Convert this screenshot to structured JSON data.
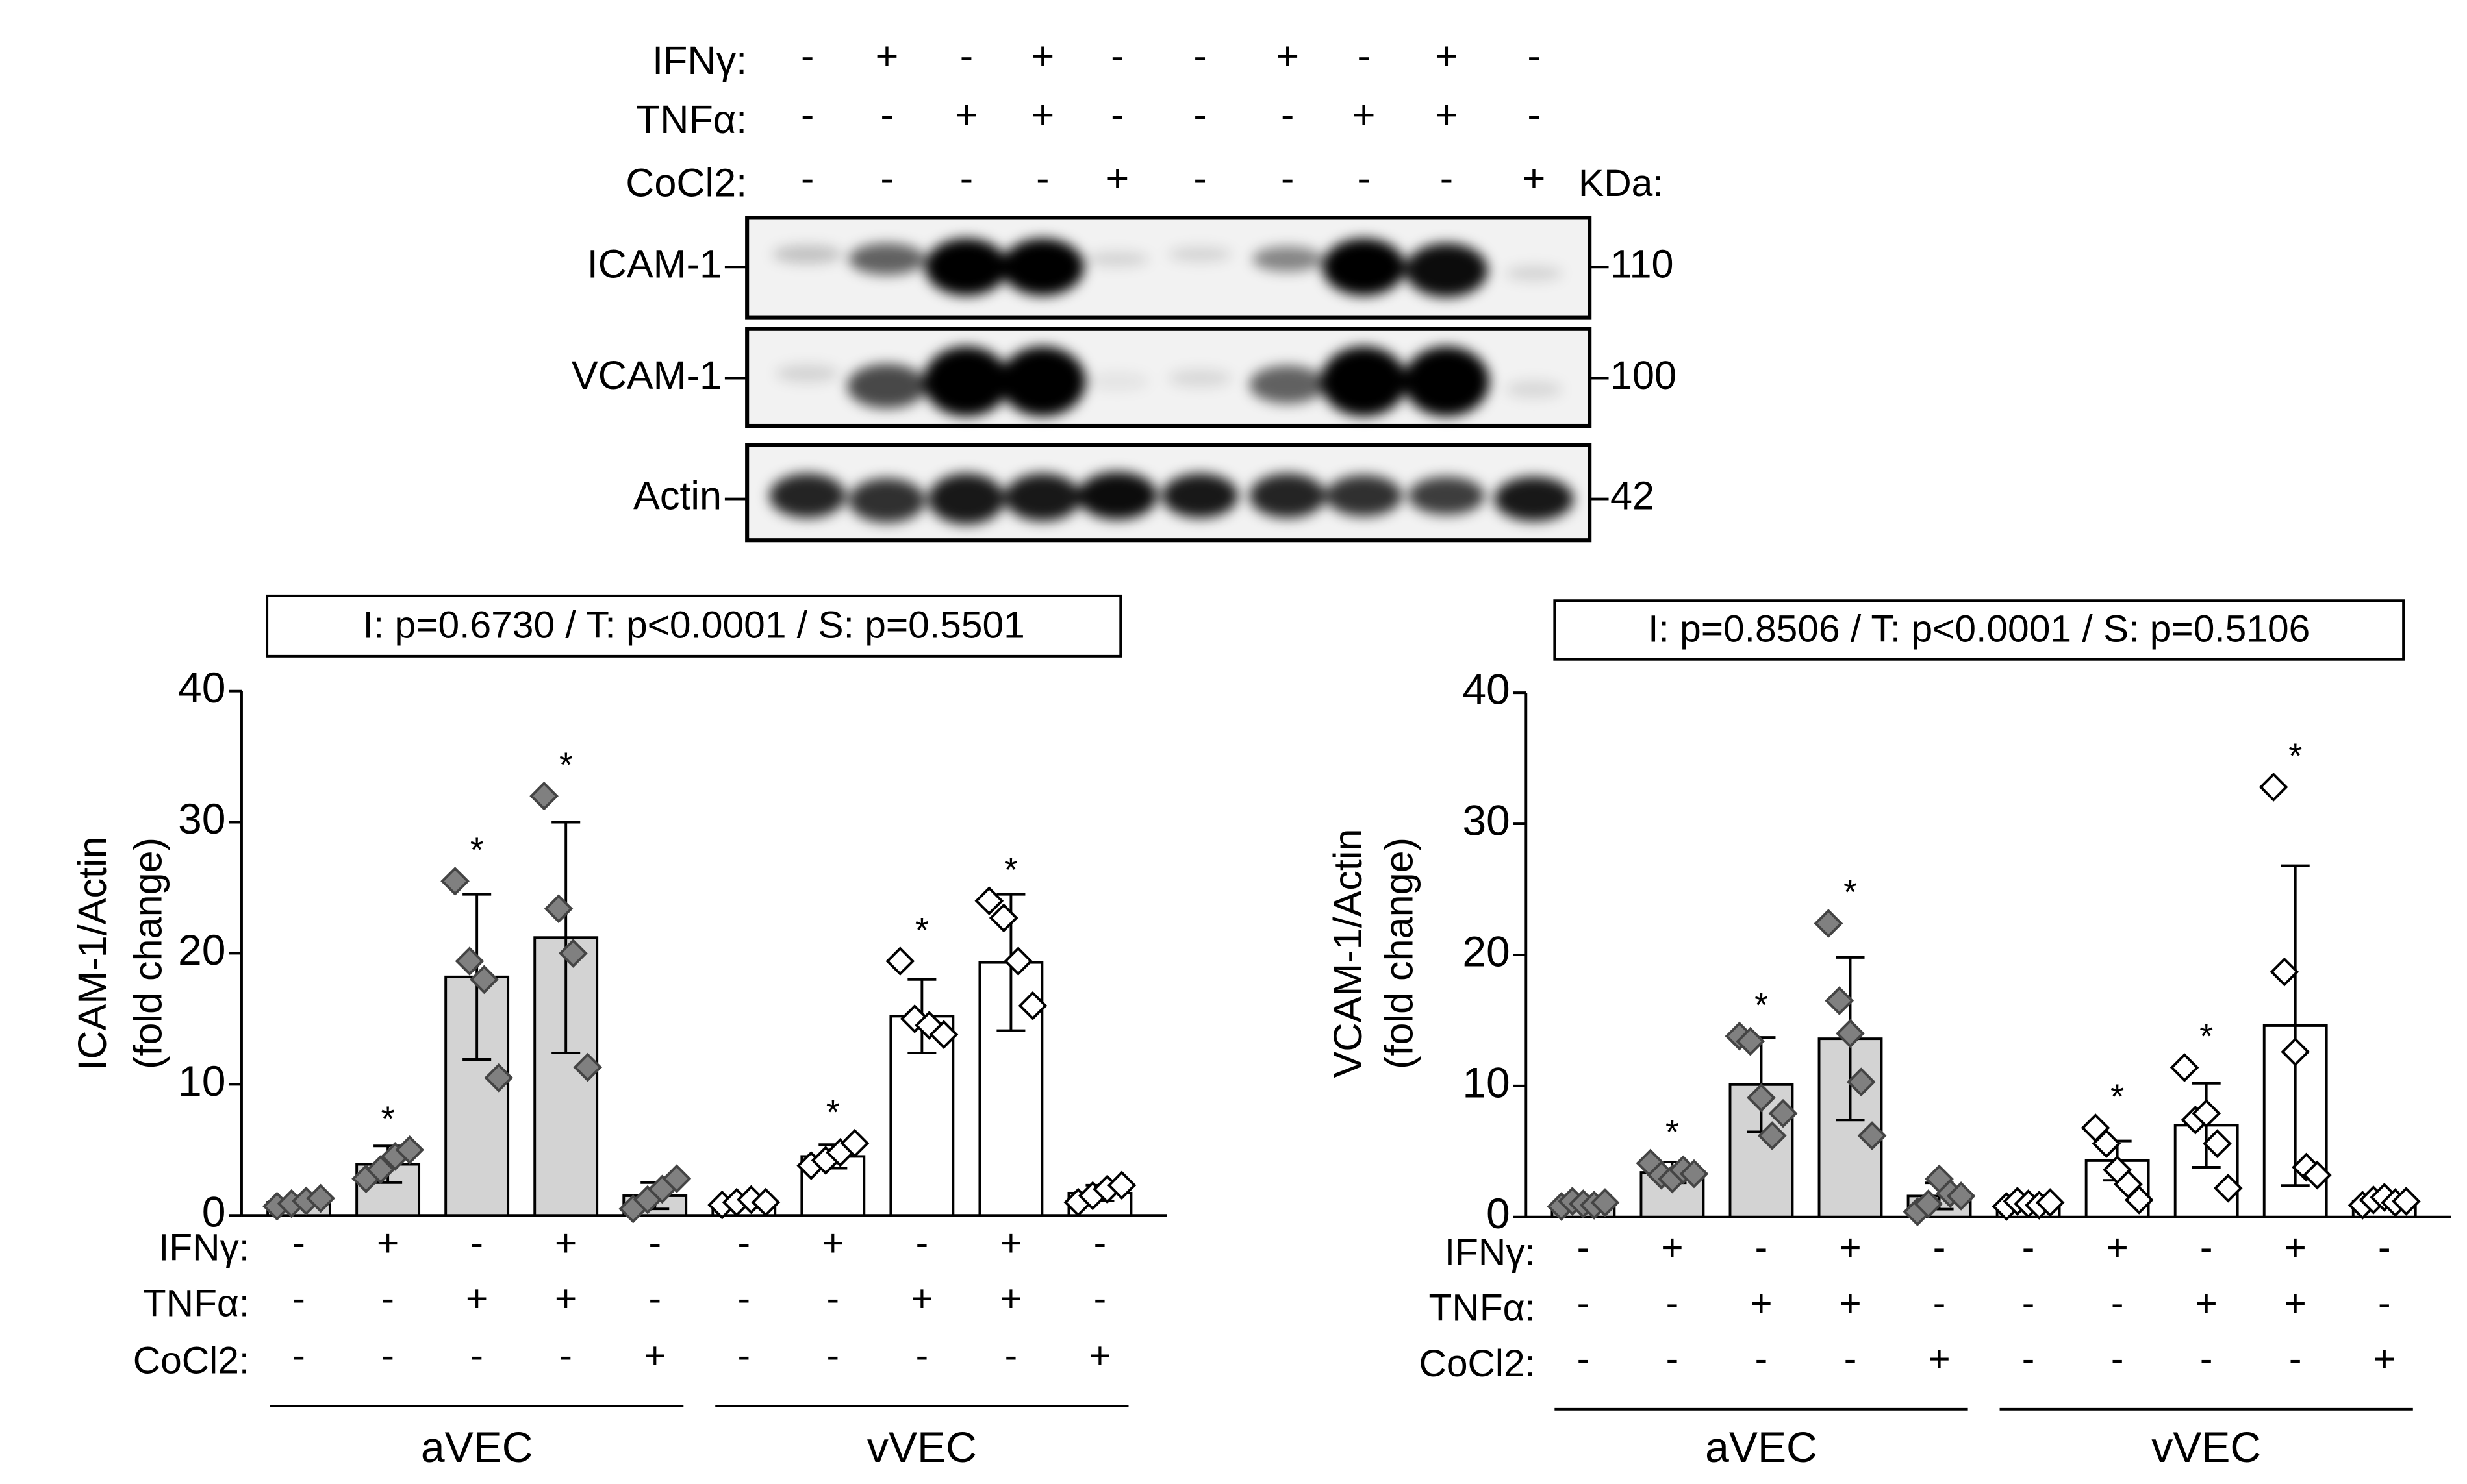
{
  "blot": {
    "conditions": [
      {
        "name": "IFNγ:",
        "values": [
          "-",
          "+",
          "-",
          "+",
          "-",
          "-",
          "+",
          "-",
          "+",
          "-"
        ]
      },
      {
        "name": "TNFα:",
        "values": [
          "-",
          "-",
          "+",
          "+",
          "-",
          "-",
          "-",
          "+",
          "+",
          "-"
        ]
      },
      {
        "name": "CoCl2:",
        "values": [
          "-",
          "-",
          "-",
          "-",
          "+",
          "-",
          "-",
          "-",
          "-",
          "+"
        ]
      }
    ],
    "kda_label": "KDa:",
    "bands": [
      {
        "name": "ICAM-1",
        "kda": 110
      },
      {
        "name": "VCAM-1",
        "kda": 100
      },
      {
        "name": "Actin",
        "kda": 42
      }
    ]
  },
  "chart_data": [
    {
      "type": "bar",
      "annotation": "I: p=0.6730 / T: p<0.0001 / S: p=0.5501",
      "ylabel": [
        "ICAM-1/Actin",
        "(fold change)"
      ],
      "conditions": [
        {
          "name": "IFNγ:",
          "values": [
            "-",
            "+",
            "-",
            "+",
            "-",
            "-",
            "+",
            "-",
            "+",
            "-"
          ]
        },
        {
          "name": "TNFα:",
          "values": [
            "-",
            "-",
            "+",
            "+",
            "-",
            "-",
            "-",
            "+",
            "+",
            "-"
          ]
        },
        {
          "name": "CoCl2:",
          "values": [
            "-",
            "-",
            "-",
            "-",
            "+",
            "-",
            "-",
            "-",
            "-",
            "+"
          ]
        }
      ],
      "groups": [
        "aVEC",
        "vVEC"
      ],
      "values": [
        1.0,
        3.9,
        18.2,
        21.2,
        1.5,
        1.0,
        4.5,
        15.2,
        19.3,
        1.7
      ],
      "errors": [
        0.3,
        1.4,
        6.3,
        8.8,
        1.0,
        0.3,
        0.9,
        2.8,
        5.2,
        0.6
      ],
      "points": [
        [
          0.7,
          0.9,
          1.1,
          1.3
        ],
        [
          2.8,
          3.5,
          4.5,
          5.0
        ],
        [
          25.5,
          19.4,
          18.0,
          10.5
        ],
        [
          32.0,
          23.4,
          20.0,
          11.3
        ],
        [
          0.5,
          1.2,
          2.0,
          2.8
        ],
        [
          0.8,
          1.0,
          1.2,
          1.0
        ],
        [
          3.8,
          4.2,
          4.8,
          5.5
        ],
        [
          19.4,
          15.0,
          14.5,
          13.8
        ],
        [
          24.0,
          22.7,
          19.4,
          16.0
        ],
        [
          1.0,
          1.5,
          2.0,
          2.3
        ]
      ],
      "significance": [
        null,
        "*",
        "*",
        "*",
        null,
        null,
        "*",
        "*",
        "*",
        null
      ],
      "colors": [
        "#d3d3d3",
        "#d3d3d3",
        "#d3d3d3",
        "#d3d3d3",
        "#d3d3d3",
        "#ffffff",
        "#ffffff",
        "#ffffff",
        "#ffffff",
        "#ffffff"
      ],
      "point_colors": [
        "#808080",
        "#808080",
        "#808080",
        "#808080",
        "#808080",
        "#ffffff",
        "#ffffff",
        "#ffffff",
        "#ffffff",
        "#ffffff"
      ],
      "ylim": [
        0,
        40
      ],
      "yticks": [
        0,
        10,
        20,
        30,
        40
      ]
    },
    {
      "type": "bar",
      "annotation": "I: p=0.8506 / T: p<0.0001 / S: p=0.5106",
      "ylabel": [
        "VCAM-1/Actin",
        "(fold change)"
      ],
      "conditions": [
        {
          "name": "IFNγ:",
          "values": [
            "-",
            "+",
            "-",
            "+",
            "-",
            "-",
            "+",
            "-",
            "+",
            "-"
          ]
        },
        {
          "name": "TNFα:",
          "values": [
            "-",
            "-",
            "+",
            "+",
            "-",
            "-",
            "-",
            "+",
            "+",
            "-"
          ]
        },
        {
          "name": "CoCl2:",
          "values": [
            "-",
            "-",
            "-",
            "-",
            "+",
            "-",
            "-",
            "-",
            "-",
            "+"
          ]
        }
      ],
      "groups": [
        "aVEC",
        "vVEC"
      ],
      "values": [
        1.0,
        3.4,
        10.1,
        13.6,
        1.6,
        1.0,
        4.3,
        7.0,
        14.6,
        1.2
      ],
      "errors": [
        0.3,
        0.8,
        3.6,
        6.2,
        1.0,
        0.3,
        1.5,
        3.2,
        12.2,
        0.4
      ],
      "points": [
        [
          0.8,
          1.2,
          1.0,
          0.9,
          1.1
        ],
        [
          4.1,
          3.2,
          2.9,
          3.6,
          3.3
        ],
        [
          13.8,
          13.4,
          9.1,
          6.2,
          7.9
        ],
        [
          22.4,
          16.5,
          14.0,
          10.3,
          6.2
        ],
        [
          0.4,
          1.0,
          2.9,
          1.8,
          1.6
        ],
        [
          0.8,
          1.2,
          1.0,
          0.9,
          1.1
        ],
        [
          6.8,
          5.6,
          3.6,
          2.5,
          1.3
        ],
        [
          11.4,
          7.4,
          7.9,
          5.6,
          2.2
        ],
        [
          32.8,
          18.7,
          12.6,
          3.8,
          3.2
        ],
        [
          0.9,
          1.3,
          1.5,
          1.1,
          1.2
        ]
      ],
      "significance": [
        null,
        "*",
        "*",
        "*",
        null,
        null,
        "*",
        "*",
        "*",
        null
      ],
      "colors": [
        "#d3d3d3",
        "#d3d3d3",
        "#d3d3d3",
        "#d3d3d3",
        "#d3d3d3",
        "#ffffff",
        "#ffffff",
        "#ffffff",
        "#ffffff",
        "#ffffff"
      ],
      "point_colors": [
        "#808080",
        "#808080",
        "#808080",
        "#808080",
        "#808080",
        "#ffffff",
        "#ffffff",
        "#ffffff",
        "#ffffff",
        "#ffffff"
      ],
      "ylim": [
        0,
        40
      ],
      "yticks": [
        0,
        10,
        20,
        30,
        40
      ]
    }
  ]
}
